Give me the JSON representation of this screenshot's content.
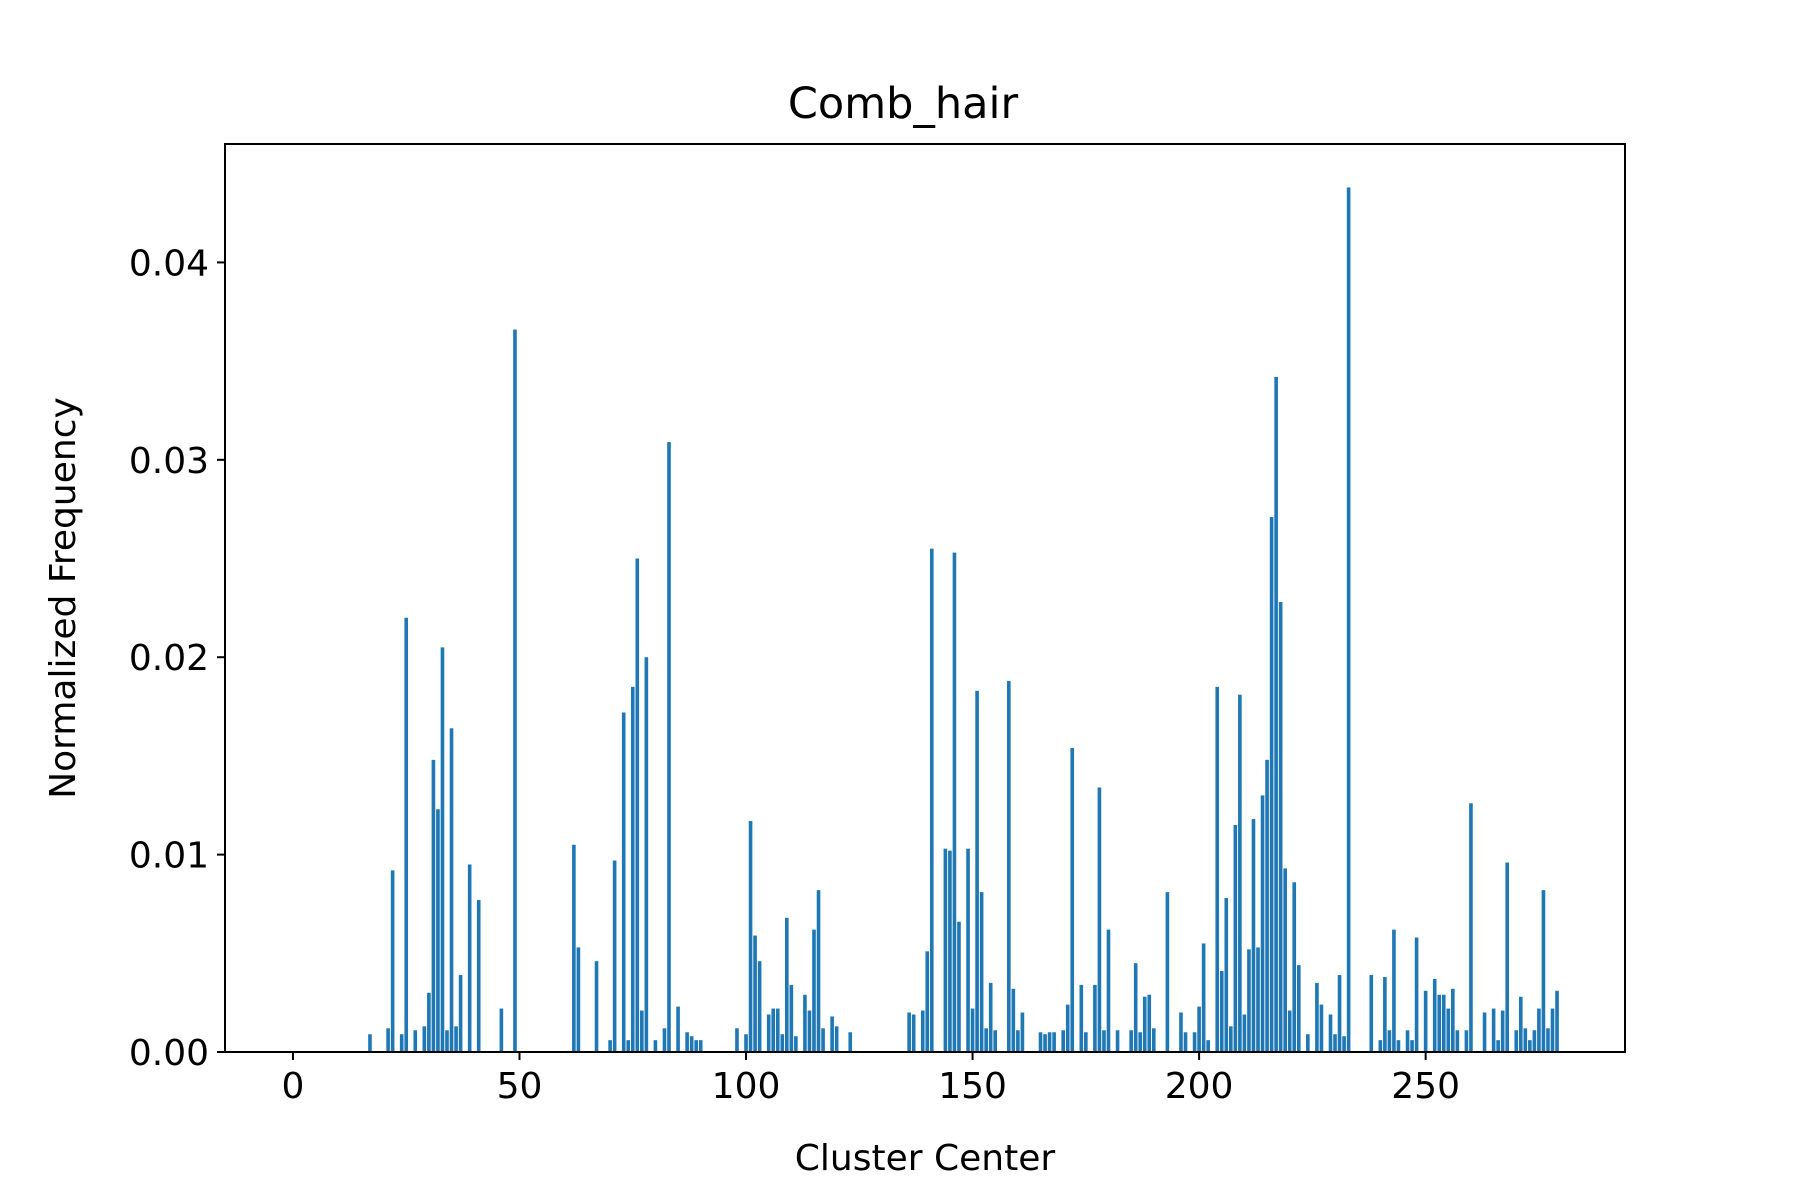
{
  "chart_data": {
    "type": "bar",
    "title": "Comb_hair",
    "xlabel": "Cluster Center",
    "ylabel": "Normalized Frequency",
    "xlim": [
      -15,
      294
    ],
    "ylim": [
      0,
      0.046
    ],
    "xticks": [
      0,
      50,
      100,
      150,
      200,
      250
    ],
    "yticks": [
      0.0,
      0.01,
      0.02,
      0.03,
      0.04
    ],
    "ytick_labels": [
      "0.00",
      "0.01",
      "0.02",
      "0.03",
      "0.04"
    ],
    "grid": false,
    "legend": "none",
    "bar_color": "#1f77b4",
    "x": [
      17,
      21,
      22,
      24,
      25,
      27,
      29,
      30,
      31,
      32,
      33,
      34,
      35,
      36,
      37,
      39,
      41,
      46,
      49,
      62,
      63,
      67,
      70,
      71,
      73,
      74,
      75,
      76,
      77,
      78,
      80,
      82,
      83,
      85,
      87,
      88,
      89,
      90,
      98,
      100,
      101,
      102,
      103,
      105,
      106,
      107,
      108,
      109,
      110,
      111,
      113,
      114,
      115,
      116,
      117,
      119,
      120,
      123,
      136,
      137,
      139,
      140,
      141,
      144,
      145,
      146,
      147,
      149,
      150,
      151,
      152,
      153,
      154,
      155,
      158,
      159,
      160,
      161,
      165,
      166,
      167,
      168,
      170,
      171,
      172,
      174,
      175,
      177,
      178,
      179,
      180,
      182,
      185,
      186,
      187,
      188,
      189,
      190,
      193,
      196,
      197,
      199,
      200,
      201,
      202,
      204,
      205,
      206,
      207,
      208,
      209,
      210,
      211,
      212,
      213,
      214,
      215,
      216,
      217,
      218,
      219,
      220,
      221,
      222,
      224,
      226,
      227,
      229,
      230,
      231,
      232,
      233,
      238,
      240,
      241,
      242,
      243,
      244,
      246,
      247,
      248,
      250,
      252,
      253,
      254,
      255,
      256,
      257,
      259,
      260,
      263,
      265,
      266,
      267,
      268,
      270,
      271,
      272,
      273,
      274,
      275,
      276,
      277,
      278,
      279
    ],
    "values": [
      0.0009,
      0.0012,
      0.0092,
      0.0009,
      0.022,
      0.0011,
      0.0013,
      0.003,
      0.0148,
      0.0123,
      0.0205,
      0.0011,
      0.0164,
      0.0013,
      0.0039,
      0.0095,
      0.0077,
      0.0022,
      0.0366,
      0.0105,
      0.0053,
      0.0046,
      0.0006,
      0.0097,
      0.0172,
      0.0006,
      0.0185,
      0.025,
      0.0021,
      0.02,
      0.0006,
      0.0012,
      0.0309,
      0.0023,
      0.001,
      0.0008,
      0.0006,
      0.0006,
      0.0012,
      0.0009,
      0.0117,
      0.0059,
      0.0046,
      0.0019,
      0.0022,
      0.0022,
      0.0009,
      0.0068,
      0.0034,
      0.0008,
      0.0029,
      0.0021,
      0.0062,
      0.0082,
      0.0012,
      0.0018,
      0.0013,
      0.001,
      0.002,
      0.0019,
      0.0021,
      0.0051,
      0.0255,
      0.0103,
      0.0102,
      0.0253,
      0.0066,
      0.0103,
      0.0022,
      0.0183,
      0.0081,
      0.0012,
      0.0035,
      0.0011,
      0.0188,
      0.0032,
      0.0011,
      0.002,
      0.001,
      0.0009,
      0.001,
      0.001,
      0.0011,
      0.0024,
      0.0154,
      0.0034,
      0.001,
      0.0034,
      0.0134,
      0.0011,
      0.0062,
      0.0011,
      0.0011,
      0.0045,
      0.001,
      0.0028,
      0.0029,
      0.0012,
      0.0081,
      0.002,
      0.001,
      0.001,
      0.0023,
      0.0055,
      0.0006,
      0.0185,
      0.0041,
      0.0078,
      0.0013,
      0.0115,
      0.0181,
      0.0019,
      0.0052,
      0.0118,
      0.0053,
      0.013,
      0.0148,
      0.0271,
      0.0342,
      0.0228,
      0.0093,
      0.0021,
      0.0086,
      0.0044,
      0.0009,
      0.0035,
      0.0024,
      0.0019,
      0.0009,
      0.0039,
      0.0008,
      0.0438,
      0.0039,
      0.0006,
      0.0038,
      0.0011,
      0.0062,
      0.0006,
      0.0011,
      0.0006,
      0.0058,
      0.0031,
      0.0037,
      0.0029,
      0.0029,
      0.0022,
      0.0032,
      0.0011,
      0.0011,
      0.0126,
      0.002,
      0.0022,
      0.0006,
      0.0021,
      0.0096,
      0.0011,
      0.0028,
      0.0012,
      0.0006,
      0.0011,
      0.0022,
      0.0082,
      0.0012,
      0.0022,
      0.0031
    ]
  }
}
